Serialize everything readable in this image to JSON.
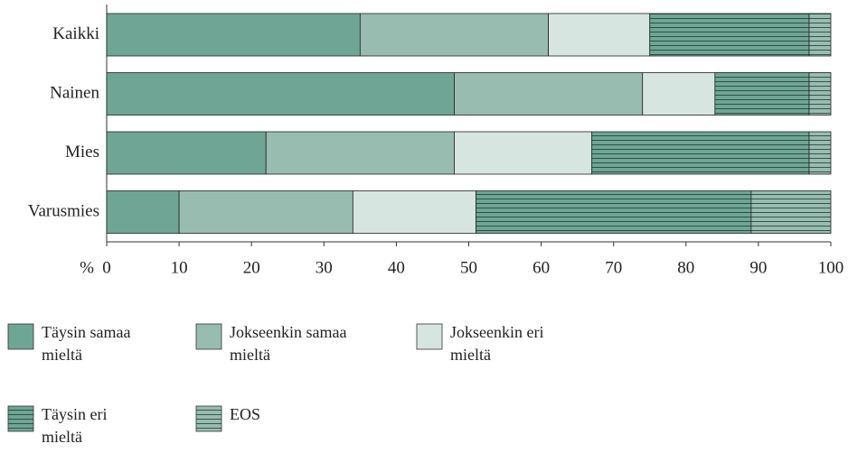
{
  "chart_data": {
    "type": "stacked_barh",
    "categories": [
      "Kaikki",
      "Nainen",
      "Mies",
      "Varusmies"
    ],
    "x_label": "%",
    "xlim": [
      0,
      100
    ],
    "xticks": [
      0,
      10,
      20,
      30,
      40,
      50,
      60,
      70,
      80,
      90,
      100
    ],
    "series": [
      {
        "name": "Täysin samaa mieltä",
        "color": "#6fa595",
        "hatch": "none",
        "values": [
          35,
          48,
          22,
          10
        ]
      },
      {
        "name": "Jokseenkin samaa mieltä",
        "color": "#98bdb0",
        "hatch": "none",
        "values": [
          26,
          26,
          26,
          24
        ]
      },
      {
        "name": "Jokseenkin eri mieltä",
        "color": "#d7e5e0",
        "hatch": "none",
        "values": [
          14,
          10,
          19,
          17
        ]
      },
      {
        "name": "Täysin eri mieltä",
        "color": "#6fa595",
        "hatch": "horizontal",
        "values": [
          22,
          13,
          30,
          38
        ]
      },
      {
        "name": "EOS",
        "color": "#98bdb0",
        "hatch": "horizontal",
        "values": [
          3,
          3,
          3,
          11
        ]
      }
    ]
  }
}
